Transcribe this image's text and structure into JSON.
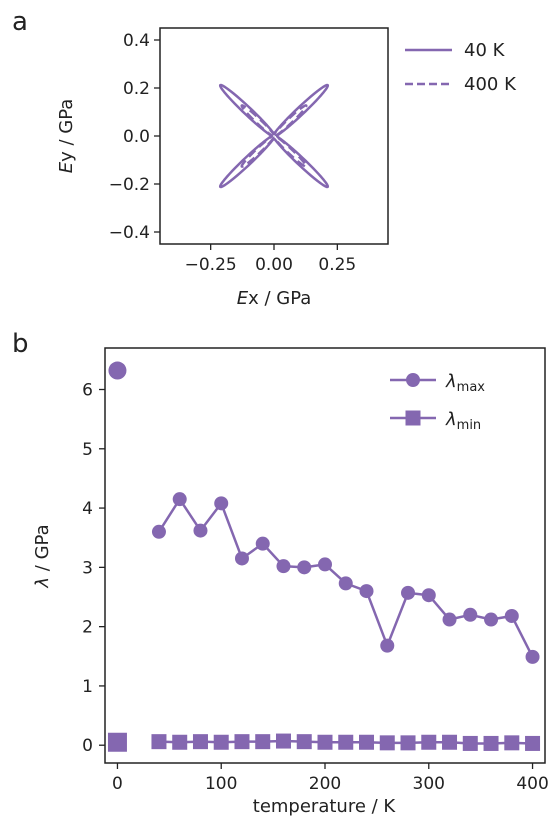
{
  "chart_data": [
    {
      "panel_label": "a",
      "type": "line",
      "xlabel_italic": "E",
      "xlabel_rest": "x / GPa",
      "ylabel_italic": "E",
      "ylabel_rest": "y / GPa",
      "xlim": [
        -0.45,
        0.45
      ],
      "ylim": [
        -0.45,
        0.45
      ],
      "xticks": [
        -0.25,
        0.0,
        0.25
      ],
      "xtick_labels": [
        "−0.25",
        "0.00",
        "0.25"
      ],
      "yticks": [
        -0.4,
        -0.2,
        0.0,
        0.2,
        0.4
      ],
      "ytick_labels": [
        "−0.4",
        "−0.2",
        "0.0",
        "0.2",
        "0.4"
      ],
      "legend_position": "outside-right",
      "grid": false,
      "series": [
        {
          "name": "40 K",
          "style": "solid",
          "max_modulus": 0.3,
          "min_modulus": 0.012
        },
        {
          "name": "400 K",
          "style": "dashed",
          "max_modulus": 0.18,
          "min_modulus": 0.008
        }
      ]
    },
    {
      "panel_label": "b",
      "type": "line",
      "xlabel": "temperature / K",
      "ylabel_italic": "λ",
      "ylabel_rest": " / GPa",
      "xlim": [
        -12,
        412
      ],
      "ylim": [
        -0.3,
        6.7
      ],
      "xticks": [
        0,
        100,
        200,
        300,
        400
      ],
      "xtick_labels": [
        "0",
        "100",
        "200",
        "300",
        "400"
      ],
      "yticks": [
        0,
        1,
        2,
        3,
        4,
        5,
        6
      ],
      "ytick_labels": [
        "0",
        "1",
        "2",
        "3",
        "4",
        "5",
        "6"
      ],
      "legend_position": "top-right",
      "grid": false,
      "isolated_point_x": 0,
      "series": [
        {
          "name_symbol": "λ",
          "name_sub": "max",
          "marker": "circle",
          "x": [
            0,
            40,
            60,
            80,
            100,
            120,
            140,
            160,
            180,
            200,
            220,
            240,
            260,
            280,
            300,
            320,
            340,
            360,
            380,
            400
          ],
          "y": [
            6.32,
            3.6,
            4.15,
            3.62,
            4.08,
            3.15,
            3.4,
            3.02,
            3.0,
            3.05,
            2.73,
            2.6,
            1.68,
            2.57,
            2.53,
            2.12,
            2.2,
            2.12,
            2.18,
            1.49
          ]
        },
        {
          "name_symbol": "λ",
          "name_sub": "min",
          "marker": "square",
          "x": [
            0,
            40,
            60,
            80,
            100,
            120,
            140,
            160,
            180,
            200,
            220,
            240,
            260,
            280,
            300,
            320,
            340,
            360,
            380,
            400
          ],
          "y": [
            0.05,
            0.06,
            0.05,
            0.06,
            0.05,
            0.06,
            0.06,
            0.07,
            0.06,
            0.05,
            0.05,
            0.05,
            0.04,
            0.04,
            0.05,
            0.05,
            0.03,
            0.03,
            0.04,
            0.03
          ]
        }
      ]
    }
  ],
  "colors": {
    "series": "#8467b0",
    "axis": "#222222"
  }
}
